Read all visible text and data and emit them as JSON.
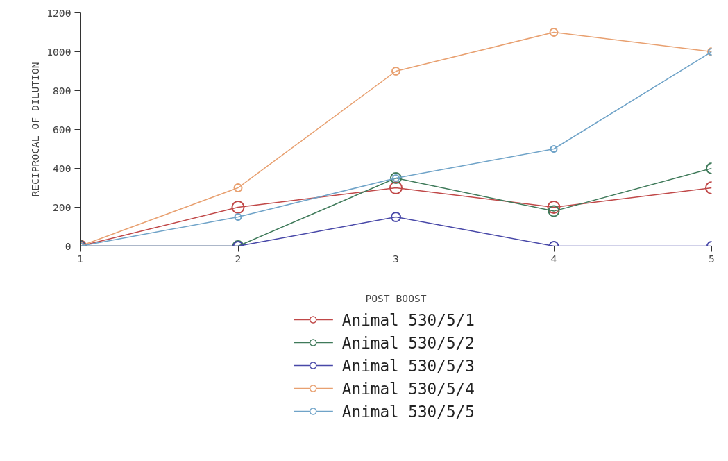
{
  "chart_data": {
    "type": "line",
    "xlabel": "POST BOOST",
    "ylabel": "RECIPROCAL OF DILUTION",
    "x": [
      1,
      2,
      3,
      4,
      5
    ],
    "xlim": [
      1,
      5
    ],
    "xticks": [
      1,
      2,
      3,
      4,
      5
    ],
    "ylim": [
      0,
      1200
    ],
    "yticks": [
      0,
      200,
      400,
      600,
      800,
      1000,
      1200
    ],
    "grid": false,
    "legend": "bottom",
    "line_style": "solid",
    "marker": "circle",
    "series": [
      {
        "name": "Animal 530/5/1",
        "color": "#c04848",
        "values": [
          0,
          200,
          300,
          200,
          300
        ]
      },
      {
        "name": "Animal 530/5/2",
        "color": "#3f7a5a",
        "values": [
          0,
          0,
          350,
          180,
          400
        ]
      },
      {
        "name": "Animal 530/5/3",
        "color": "#4848a8",
        "values": [
          0,
          0,
          150,
          0,
          0
        ]
      },
      {
        "name": "Animal 530/5/4",
        "color": "#e8a070",
        "values": [
          0,
          300,
          900,
          1100,
          1000
        ]
      },
      {
        "name": "Animal 530/5/5",
        "color": "#6fa3c8",
        "values": [
          0,
          150,
          350,
          500,
          1000
        ]
      }
    ]
  }
}
